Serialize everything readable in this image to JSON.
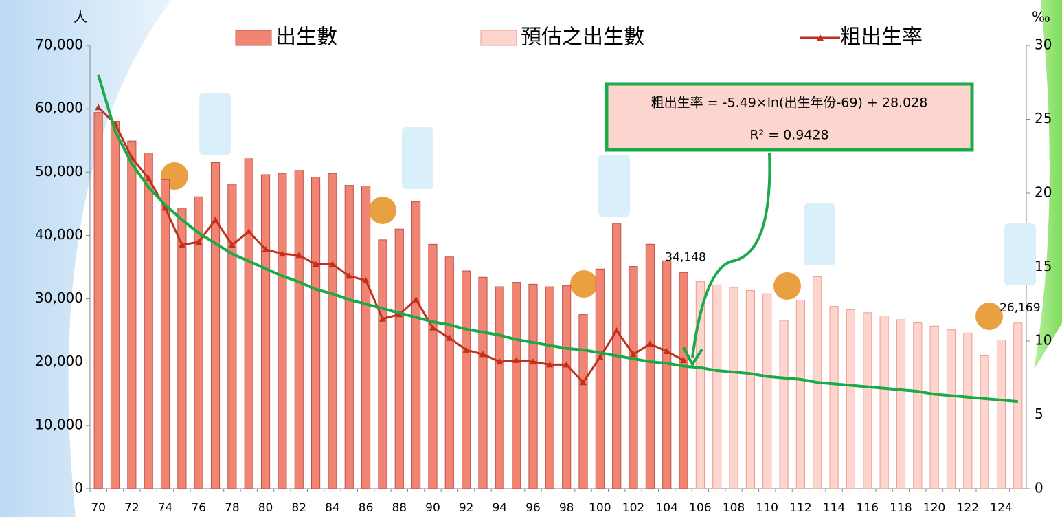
{
  "chart_data": {
    "type": "bar",
    "y_unit_label": "人",
    "y2_unit_label": "‰",
    "categories": [
      "70",
      null,
      "72",
      null,
      "74",
      null,
      "76",
      null,
      "78",
      null,
      "80",
      null,
      "82",
      null,
      "84",
      null,
      "86",
      null,
      "88",
      null,
      "90",
      null,
      "92",
      null,
      "94",
      null,
      "96",
      null,
      "98",
      null,
      "100",
      null,
      "102",
      null,
      "104",
      null,
      "106",
      null,
      "108",
      null,
      "110",
      null,
      "112",
      null,
      "114",
      null,
      "116",
      null,
      "118",
      null,
      "120",
      null,
      "122",
      null,
      "124",
      null
    ],
    "series": [
      {
        "name": "出生數",
        "type": "bar",
        "color": "#f08573",
        "stroke": "#c0504d",
        "values": [
          59400,
          58000,
          54900,
          53000,
          48800,
          44300,
          46100,
          51500,
          48100,
          52100,
          49600,
          49800,
          50300,
          49200,
          49800,
          47900,
          47800,
          39300,
          41000,
          45300,
          38600,
          36600,
          34400,
          33400,
          31900,
          32600,
          32300,
          31900,
          32100,
          27500,
          34700,
          41900,
          35100,
          38600,
          36000,
          34148,
          null,
          null,
          null,
          null,
          null,
          null,
          null,
          null,
          null,
          null,
          null,
          null,
          null,
          null,
          null,
          null,
          null,
          null,
          null,
          null
        ],
        "value_labels": [
          null,
          null,
          null,
          null,
          null,
          null,
          null,
          null,
          null,
          null,
          null,
          null,
          null,
          null,
          null,
          null,
          null,
          null,
          null,
          null,
          null,
          null,
          null,
          null,
          null,
          null,
          null,
          null,
          null,
          null,
          null,
          null,
          null,
          null,
          null,
          "34,148",
          null,
          null,
          null,
          null,
          null,
          null,
          null,
          null,
          null,
          null,
          null,
          null,
          null,
          null,
          null,
          null,
          null,
          null,
          null,
          null
        ]
      },
      {
        "name": "預估之出生數",
        "type": "bar",
        "color": "#fcd5cf",
        "stroke": "#f29a8c",
        "values": [
          null,
          null,
          null,
          null,
          null,
          null,
          null,
          null,
          null,
          null,
          null,
          null,
          null,
          null,
          null,
          null,
          null,
          null,
          null,
          null,
          null,
          null,
          null,
          null,
          null,
          null,
          null,
          null,
          null,
          null,
          null,
          null,
          null,
          null,
          null,
          null,
          32700,
          32200,
          31800,
          31300,
          30800,
          26600,
          29800,
          33500,
          28800,
          28300,
          27800,
          27300,
          26700,
          26200,
          25700,
          25100,
          24600,
          21000,
          23500,
          26169
        ],
        "value_labels": [
          null,
          null,
          null,
          null,
          null,
          null,
          null,
          null,
          null,
          null,
          null,
          null,
          null,
          null,
          null,
          null,
          null,
          null,
          null,
          null,
          null,
          null,
          null,
          null,
          null,
          null,
          null,
          null,
          null,
          null,
          null,
          null,
          null,
          null,
          null,
          null,
          null,
          null,
          null,
          null,
          null,
          null,
          null,
          null,
          null,
          null,
          null,
          null,
          null,
          null,
          null,
          null,
          null,
          null,
          null,
          "26,169"
        ]
      },
      {
        "name": "粗出生率",
        "type": "line",
        "axis": "y2",
        "color": "#c0301a",
        "values": [
          25.8,
          24.7,
          22.4,
          21.0,
          19.0,
          16.5,
          16.7,
          18.2,
          16.5,
          17.4,
          16.2,
          15.9,
          15.8,
          15.2,
          15.2,
          14.4,
          14.1,
          11.5,
          11.8,
          12.8,
          10.9,
          10.2,
          9.4,
          9.1,
          8.6,
          8.7,
          8.6,
          8.4,
          8.4,
          7.2,
          8.9,
          10.7,
          9.1,
          9.8,
          9.3,
          8.7,
          null,
          null,
          null,
          null,
          null,
          null,
          null,
          null,
          null,
          null,
          null,
          null,
          null,
          null,
          null,
          null,
          null,
          null,
          null,
          null
        ]
      }
    ],
    "trendline": {
      "type": "line",
      "axis": "y2",
      "color": "#1aaa48",
      "values": [
        28.0,
        24.2,
        22.0,
        20.4,
        19.2,
        18.2,
        17.3,
        16.6,
        15.9,
        15.4,
        14.9,
        14.4,
        14.0,
        13.5,
        13.2,
        12.8,
        12.5,
        12.2,
        11.9,
        11.6,
        11.3,
        11.1,
        10.8,
        10.6,
        10.4,
        10.1,
        9.9,
        9.7,
        9.5,
        9.4,
        9.2,
        9.0,
        8.8,
        8.6,
        8.5,
        8.3,
        8.2,
        8.0,
        7.9,
        7.8,
        7.6,
        7.5,
        7.4,
        7.2,
        7.1,
        7.0,
        6.9,
        6.8,
        6.7,
        6.6,
        6.4,
        6.3,
        6.2,
        6.1,
        6.0,
        5.9
      ]
    },
    "trend_equation": "粗出生率 = -5.49×ln(出生年份-69) + 28.028",
    "trend_r2": "R² = 0.9428",
    "ylim": [
      0,
      70000
    ],
    "yticks": [
      0,
      {
        "value": 10000,
        "label": "10,000"
      },
      {
        "value": 20000,
        "label": "20,000"
      },
      {
        "value": 30000,
        "label": "30,000"
      },
      {
        "value": 40000,
        "label": "40,000"
      },
      {
        "value": 50000,
        "label": "50,000"
      },
      {
        "value": 60000,
        "label": "60,000"
      },
      {
        "value": 70000,
        "label": "70,000"
      }
    ],
    "y2lim": [
      0,
      30
    ],
    "y2ticks": [
      0,
      5,
      10,
      15,
      20,
      25,
      30
    ],
    "legend": "top"
  }
}
